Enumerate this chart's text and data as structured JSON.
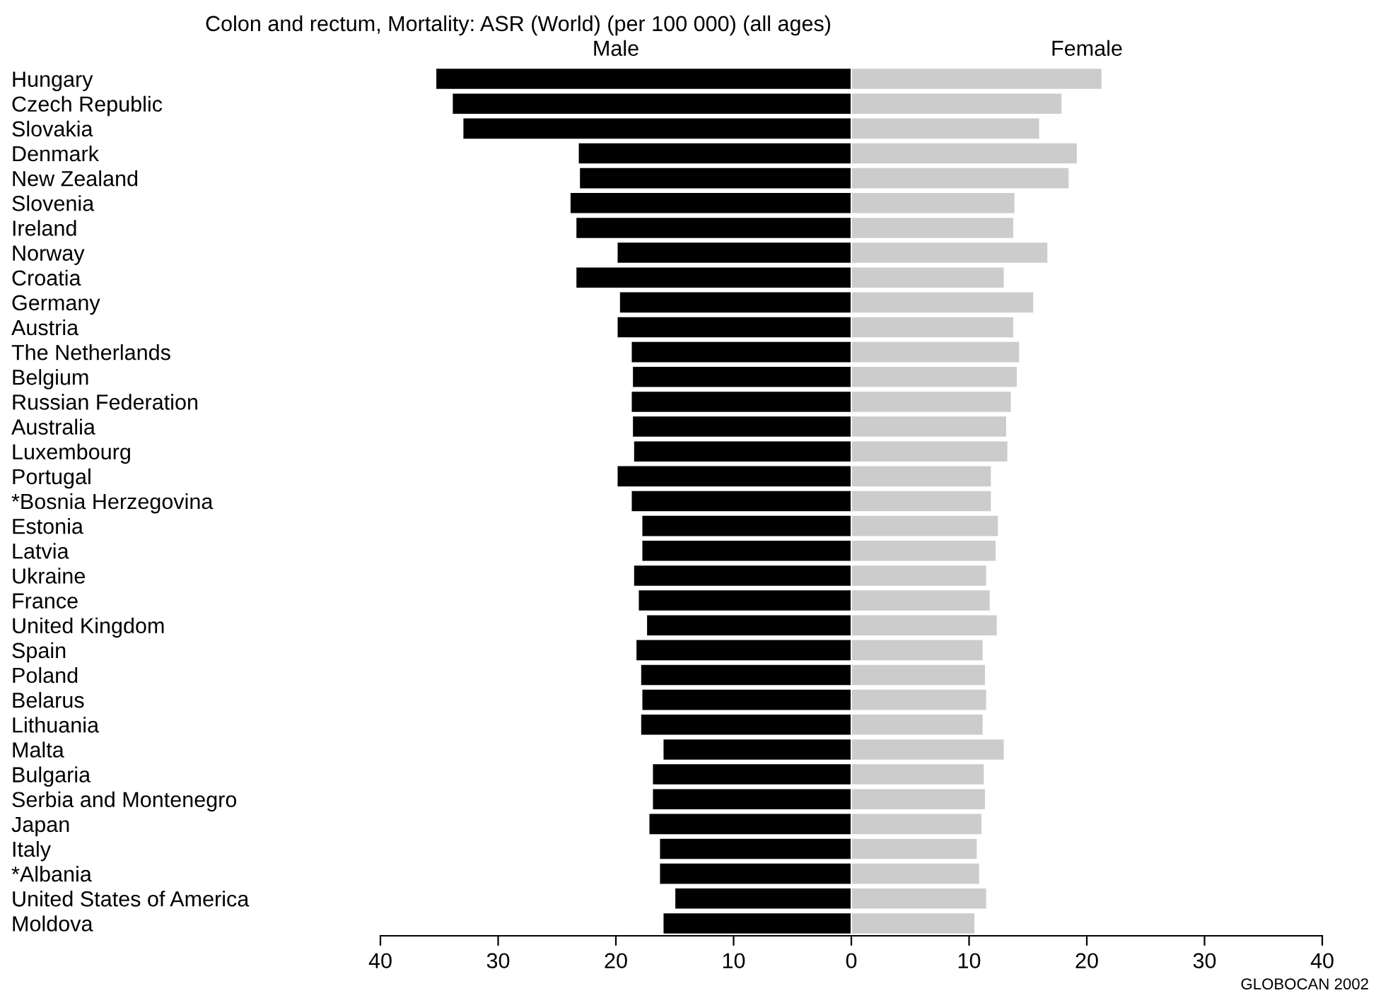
{
  "chart_data": {
    "type": "bar",
    "orientation": "horizontal",
    "stacked": true,
    "title": "Colon and rectum, Mortality: ASR (World) (per 100 000) (all ages)",
    "categories": [
      "Hungary",
      "Czech Republic",
      "Slovakia",
      "Denmark",
      "New Zealand",
      "Slovenia",
      "Ireland",
      "Norway",
      "Croatia",
      "Germany",
      "Austria",
      "The Netherlands",
      "Belgium",
      "Russian Federation",
      "Australia",
      "Luxembourg",
      "Portugal",
      "*Bosnia Herzegovina",
      "Estonia",
      "Latvia",
      "Ukraine",
      "France",
      "United Kingdom",
      "Spain",
      "Poland",
      "Belarus",
      "Lithuania",
      "Malta",
      "Bulgaria",
      "Serbia and Montenegro",
      "Japan",
      "Italy",
      "*Albania",
      "United States of America",
      "Moldova"
    ],
    "series": [
      {
        "name": "Male",
        "color": "#000000",
        "values": [
          -35.3,
          -33.9,
          -33.0,
          -23.2,
          -23.1,
          -23.9,
          -23.4,
          -19.9,
          -23.4,
          -19.7,
          -19.9,
          -18.7,
          -18.6,
          -18.7,
          -18.6,
          -18.5,
          -19.9,
          -18.7,
          -17.8,
          -17.8,
          -18.5,
          -18.1,
          -17.4,
          -18.3,
          -17.9,
          -17.8,
          -17.9,
          -16.0,
          -16.9,
          -16.9,
          -17.2,
          -16.3,
          -16.3,
          -15.0,
          -16.0
        ]
      },
      {
        "name": "Female",
        "color": "#cccccc",
        "values": [
          21.3,
          17.9,
          16.0,
          19.2,
          18.5,
          13.9,
          13.8,
          16.7,
          13.0,
          15.5,
          13.8,
          14.3,
          14.1,
          13.6,
          13.2,
          13.3,
          11.9,
          11.9,
          12.5,
          12.3,
          11.5,
          11.8,
          12.4,
          11.2,
          11.4,
          11.5,
          11.2,
          13.0,
          11.3,
          11.4,
          11.1,
          10.7,
          10.9,
          11.5,
          10.5
        ]
      }
    ],
    "xlim": [
      -40,
      40
    ],
    "xticks": [
      {
        "value": -40,
        "label": "40"
      },
      {
        "value": -30,
        "label": "30"
      },
      {
        "value": -20,
        "label": "20"
      },
      {
        "value": -10,
        "label": "10"
      },
      0,
      10,
      20,
      30,
      40
    ],
    "grid": false,
    "legend": false,
    "annotations": [
      "GLOBOCAN 2002"
    ]
  }
}
